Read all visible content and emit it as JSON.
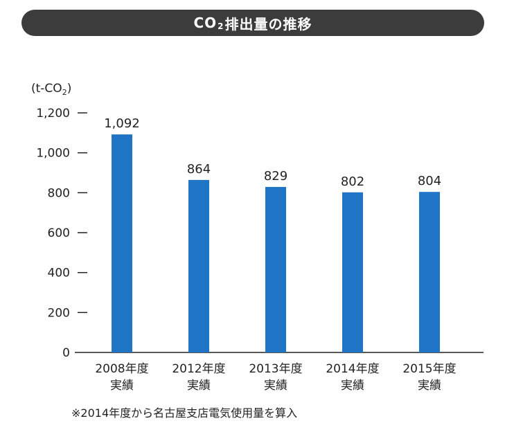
{
  "header": {
    "title_pre": "CO",
    "title_sub": "2",
    "title_post": "排出量の推移"
  },
  "unit": {
    "pre": "(t-CO",
    "sub": "2",
    "post": ")"
  },
  "note": "※2014年度から名古屋支店電気使用量を算入",
  "chart_data": {
    "type": "bar",
    "title": "CO2排出量の推移",
    "ylabel": "(t-CO2)",
    "xlabel": "",
    "ylim": [
      0,
      1200
    ],
    "yticks": [
      0,
      200,
      400,
      600,
      800,
      1000,
      1200
    ],
    "ytick_labels": [
      "0",
      "200",
      "400",
      "600",
      "800",
      "1,000",
      "1,200"
    ],
    "categories": [
      [
        "2008年度",
        "実績"
      ],
      [
        "2012年度",
        "実績"
      ],
      [
        "2013年度",
        "実績"
      ],
      [
        "2014年度",
        "実績"
      ],
      [
        "2015年度",
        "実績"
      ]
    ],
    "values": [
      1092,
      864,
      829,
      802,
      804
    ],
    "value_labels": [
      "1,092",
      "864",
      "829",
      "802",
      "804"
    ],
    "bar_color": "#1f74c6",
    "grid": false,
    "legend": "none"
  }
}
